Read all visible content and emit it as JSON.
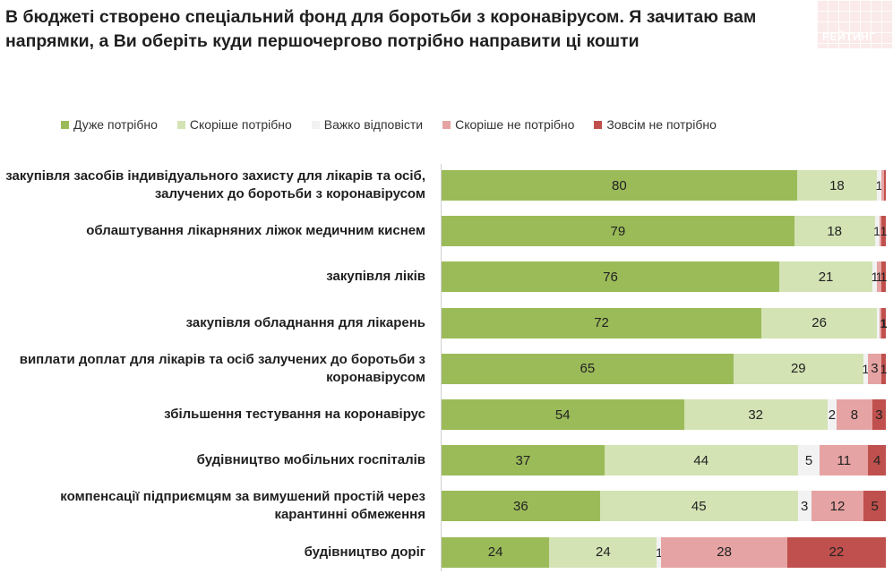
{
  "title": "В бюджеті створено спеціальний фонд для боротьби з коронавірусом. Я зачитаю вам напрямки, а Ви оберіть куди першочергово потрібно направити ці кошти",
  "logo_text": "РЕЙТИНГ",
  "chart_data": {
    "type": "bar",
    "orientation": "horizontal",
    "stacked": true,
    "xlim": [
      0,
      100
    ],
    "legend_position": "top",
    "categories": [
      "закупівля засобів індивідуального захисту для лікарів та осіб, залучених до боротьби з коронавірусом",
      "облаштування лікарняних ліжок медичним киснем",
      "закупівля ліків",
      "закупівля обладнання для лікарень",
      "виплати доплат для лікарів та осіб залучених до боротьби з коронавірусом",
      "збільшення тестування на коронавірус",
      "будівництво мобільних госпіталів",
      "компенсації підприємцям за вимушений простій через карантинні обмеження",
      "будівництво доріг"
    ],
    "series": [
      {
        "name": "Дуже потрібно",
        "color": "#9bbb59",
        "values": [
          80,
          79,
          76,
          72,
          65,
          54,
          37,
          36,
          24
        ]
      },
      {
        "name": "Скоріше потрібно",
        "color": "#d3e3b4",
        "values": [
          18,
          18,
          21,
          26,
          29,
          32,
          44,
          45,
          24
        ]
      },
      {
        "name": "Важко відповісти",
        "color": "#f2f2f2",
        "values": [
          1,
          1,
          1,
          0.5,
          1,
          2,
          5,
          3,
          1
        ]
      },
      {
        "name": "Скоріше не потрібно",
        "color": "#e6a3a3",
        "values": [
          0.5,
          0.5,
          1,
          0.5,
          3,
          8,
          11,
          12,
          28
        ]
      },
      {
        "name": "Зовсім не потрібно",
        "color": "#c0504d",
        "values": [
          0.5,
          1,
          1,
          1,
          1,
          3,
          4,
          5,
          22
        ]
      }
    ],
    "data_labels": [
      [
        "80",
        "18",
        "1",
        "",
        ""
      ],
      [
        "79",
        "18",
        "1",
        "",
        "1"
      ],
      [
        "76",
        "21",
        "1",
        "1",
        "1"
      ],
      [
        "72",
        "26",
        "",
        "",
        "1"
      ],
      [
        "65",
        "29",
        "1",
        "3",
        "1"
      ],
      [
        "54",
        "32",
        "2",
        "8",
        "3"
      ],
      [
        "37",
        "44",
        "5",
        "11",
        "4"
      ],
      [
        "36",
        "45",
        "3",
        "12",
        "5"
      ],
      [
        "24",
        "24",
        "1",
        "28",
        "22"
      ]
    ]
  }
}
